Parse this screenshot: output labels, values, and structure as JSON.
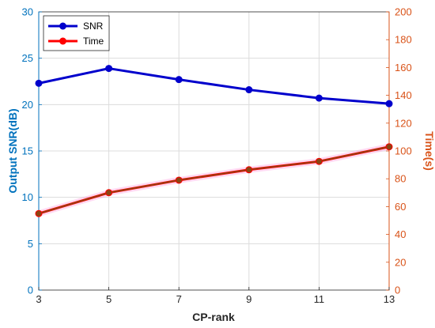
{
  "chart_data": {
    "type": "line",
    "xlabel": "CP-rank",
    "ylabel_left": "Output SNR(dB)",
    "ylabel_right": "Time(s)",
    "x": [
      3,
      5,
      7,
      9,
      11,
      13
    ],
    "x_ticks": [
      "3",
      "5",
      "7",
      "9",
      "11",
      "13"
    ],
    "xlim": [
      3,
      13
    ],
    "ylim_left": [
      0,
      30
    ],
    "y_ticks_left": [
      "0",
      "5",
      "10",
      "15",
      "20",
      "25",
      "30"
    ],
    "ylim_right": [
      0,
      200
    ],
    "y_ticks_right": [
      "0",
      "20",
      "40",
      "60",
      "80",
      "100",
      "120",
      "140",
      "160",
      "180",
      "200"
    ],
    "grid": true,
    "legend_position": "top-left",
    "series": [
      {
        "name": "SNR",
        "axis": "left",
        "color": "#0000CC",
        "values": [
          22.3,
          23.9,
          22.7,
          21.6,
          20.7,
          20.1
        ]
      },
      {
        "name": "Time",
        "axis": "right",
        "color": "#FF0000",
        "values": [
          55,
          70,
          79,
          86.5,
          92.5,
          103
        ]
      }
    ],
    "colors": {
      "left_axis": "#0072BD",
      "right_axis": "#D95319",
      "grid": "#DCDCDC",
      "time_line_overlay": "#8B4513",
      "time_glow": "#FF66CC"
    }
  }
}
